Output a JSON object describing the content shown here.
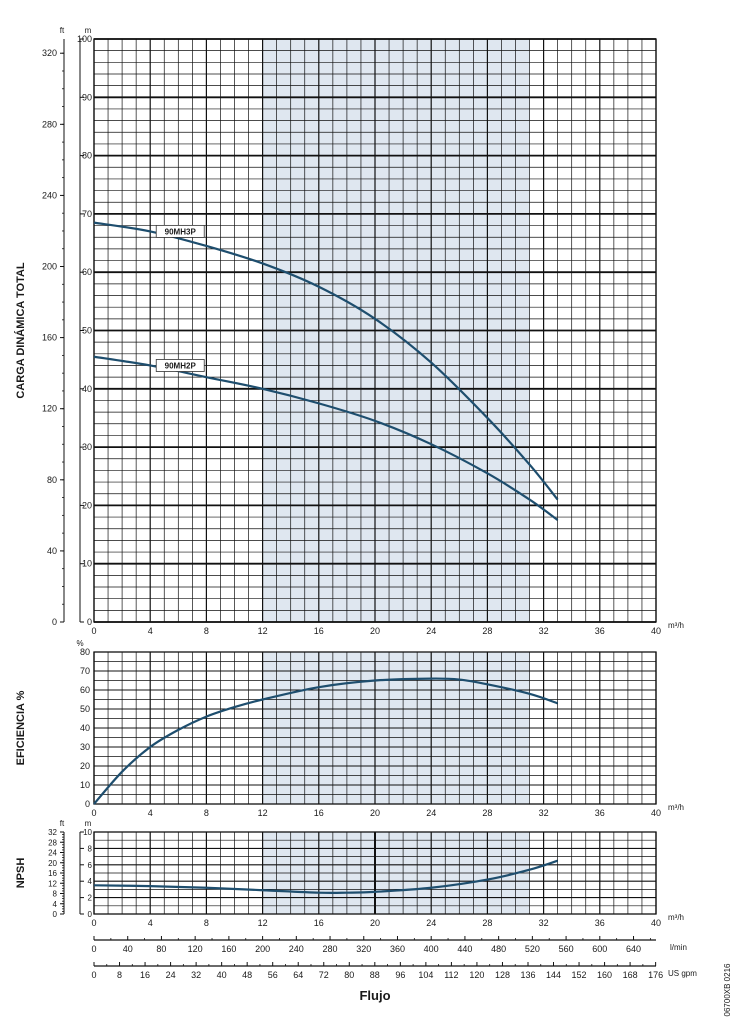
{
  "chart_data": [
    {
      "type": "line",
      "name_key": "head",
      "ylabel": "CARGA DINÁMICA TOTAL",
      "y_unit": "m",
      "y2_unit": "ft",
      "x_unit": "m³/h",
      "xlim": [
        0,
        40
      ],
      "ylim": [
        0,
        100
      ],
      "y2lim": [
        0,
        328
      ],
      "x_ticks": [
        0,
        4,
        8,
        12,
        16,
        20,
        24,
        28,
        32,
        36,
        40
      ],
      "y_ticks": [
        0,
        10,
        20,
        30,
        40,
        50,
        60,
        70,
        80,
        90,
        100
      ],
      "y2_ticks": [
        0,
        40,
        80,
        120,
        160,
        200,
        240,
        280,
        320
      ],
      "shaded_x": [
        12,
        31
      ],
      "series": [
        {
          "name": "90MH3P",
          "x": [
            0,
            4,
            8,
            12,
            16,
            20,
            24,
            28,
            31,
            33
          ],
          "y": [
            68.5,
            67,
            64.5,
            61.5,
            57.5,
            52,
            44.5,
            35,
            27,
            21
          ]
        },
        {
          "name": "90MH2P",
          "x": [
            0,
            4,
            8,
            12,
            16,
            20,
            24,
            28,
            31,
            33
          ],
          "y": [
            45.5,
            44,
            42,
            40,
            37.5,
            34.5,
            30.5,
            25.5,
            21,
            17.5
          ]
        }
      ]
    },
    {
      "type": "line",
      "name_key": "efficiency",
      "ylabel": "EFICIENCIA %",
      "y_unit": "%",
      "x_unit": "m³/h",
      "xlim": [
        0,
        40
      ],
      "ylim": [
        0,
        80
      ],
      "x_ticks": [
        0,
        4,
        8,
        12,
        16,
        20,
        24,
        28,
        32,
        36,
        40
      ],
      "y_ticks": [
        0,
        10,
        20,
        30,
        40,
        50,
        60,
        70,
        80
      ],
      "shaded_x": [
        12,
        31
      ],
      "series": [
        {
          "x": [
            0,
            2,
            4,
            6,
            8,
            10,
            12,
            16,
            20,
            24,
            26,
            28,
            31,
            33
          ],
          "y": [
            0,
            17,
            30,
            39,
            46,
            51,
            55,
            61.5,
            65,
            66,
            65.5,
            63,
            58,
            53
          ]
        }
      ]
    },
    {
      "type": "line",
      "name_key": "npsh",
      "ylabel": "NPSH",
      "y_unit": "m",
      "y2_unit": "ft",
      "x_unit": "m³/h",
      "xlim": [
        0,
        40
      ],
      "ylim": [
        0,
        10
      ],
      "y2lim": [
        0,
        32
      ],
      "x_ticks": [
        0,
        4,
        8,
        12,
        16,
        20,
        24,
        28,
        32,
        36,
        40
      ],
      "y_ticks": [
        0,
        2,
        4,
        6,
        8,
        10
      ],
      "y2_ticks": [
        0,
        4,
        8,
        12,
        16,
        20,
        24,
        28,
        32
      ],
      "shaded_x": [
        12,
        31
      ],
      "series": [
        {
          "x": [
            0,
            4,
            8,
            12,
            16,
            18,
            20,
            24,
            28,
            31,
            33
          ],
          "y": [
            3.5,
            3.4,
            3.2,
            2.9,
            2.6,
            2.6,
            2.7,
            3.2,
            4.2,
            5.4,
            6.5
          ]
        }
      ]
    }
  ],
  "flow_axes": {
    "lmin_unit": "l/min",
    "lmin_ticks": [
      0,
      40,
      80,
      120,
      160,
      200,
      240,
      280,
      320,
      360,
      400,
      440,
      480,
      520,
      560,
      600,
      640
    ],
    "gpm_unit": "US gpm",
    "gpm_ticks": [
      0,
      8,
      16,
      24,
      32,
      40,
      48,
      56,
      64,
      72,
      80,
      88,
      96,
      104,
      112,
      120,
      128,
      136,
      144,
      152,
      160,
      168,
      176
    ],
    "xlabel": "Flujo"
  },
  "colors": {
    "curve": "#1e4e6e",
    "shade": "#dfe7f0",
    "grid": "#111111"
  },
  "code": "06700XB 0216"
}
